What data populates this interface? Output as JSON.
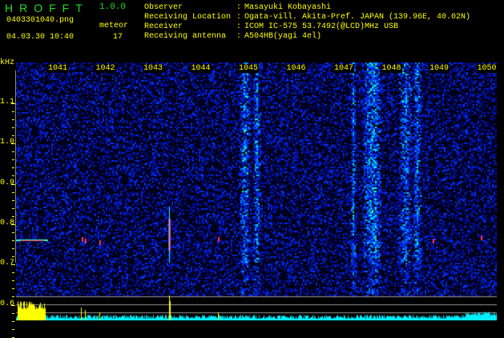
{
  "header": {
    "app": "HROFFT",
    "version": "1.0.0",
    "filename": "0403301040.png",
    "datetime": "04.03.30 10:40",
    "meteor_label": "meteor",
    "meteor_count": "17"
  },
  "info": [
    {
      "label": "Observer",
      "value": "Masayuki Kobayashi"
    },
    {
      "label": "Receiving Location",
      "value": "Ogata-vill. Akita-Pref. JAPAN (139.96E, 40.02N)"
    },
    {
      "label": "Receiver",
      "value": "ICOM IC-575 53.7492(@LCD)MHz USB"
    },
    {
      "label": "Receiving antenna",
      "value": "A504HB(yagi 4el)"
    }
  ],
  "chart_data": {
    "type": "heatmap",
    "ylabel": "kHz",
    "x_ticks": [
      "1041",
      "1042",
      "1043",
      "1044",
      "1045",
      "1046",
      "1047",
      "1048",
      "1049",
      "1050"
    ],
    "y_ticks": [
      "1.1",
      "1.0",
      "0.9",
      "0.8",
      "0.7",
      "0.6"
    ],
    "ylim": [
      0.6,
      1.2
    ],
    "colors": {
      "background": "#000033",
      "signal": "#00ffff",
      "strong": "#ff0066",
      "histogram": "#00ffff",
      "meteor_bar": "#ffff00"
    }
  }
}
